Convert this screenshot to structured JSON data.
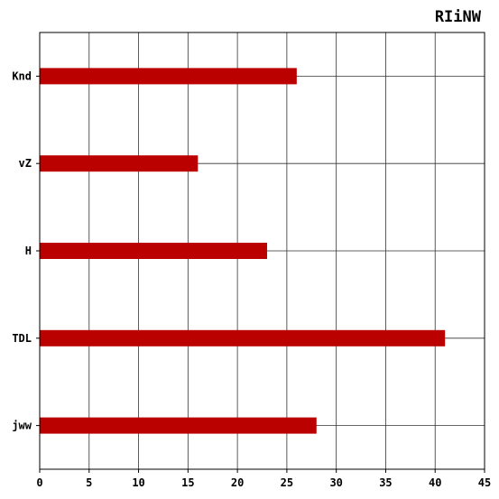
{
  "chart_data": {
    "type": "bar",
    "orientation": "horizontal",
    "title": "RIiNW",
    "xlabel": "",
    "ylabel": "",
    "categories": [
      "Knd",
      "vZ",
      "H",
      "TDL",
      "jww"
    ],
    "values": [
      26,
      16,
      23,
      41,
      28
    ],
    "xlim": [
      0,
      45
    ],
    "xticks": [
      0,
      5,
      10,
      15,
      20,
      25,
      30,
      35,
      40,
      45
    ],
    "grid": true,
    "bar_color": "#bb0000",
    "grid_color": "#333333"
  }
}
